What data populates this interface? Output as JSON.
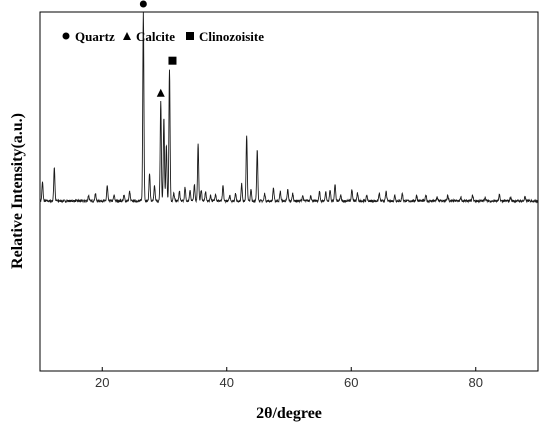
{
  "chart_data": {
    "type": "line",
    "title": "",
    "xlabel": "2θ/degree",
    "ylabel": "Relative Intensity(a.u.)",
    "xlim": [
      10,
      90
    ],
    "ylim": [
      -0.9,
      1.0
    ],
    "x_ticks": [
      20,
      40,
      60,
      80
    ],
    "grid": false,
    "y_tick_labels_shown": false,
    "legend": {
      "placement": "top-left",
      "entries": [
        {
          "marker": "circle",
          "label": "Quartz"
        },
        {
          "marker": "triangle",
          "label": "Calcite"
        },
        {
          "marker": "square",
          "label": "Clinozoisite"
        }
      ]
    },
    "baseline": 0,
    "series": [
      {
        "color": "#1a1a1a",
        "peaks": [
          [
            10.4,
            0.1
          ],
          [
            12.3,
            0.18
          ],
          [
            17.8,
            0.03
          ],
          [
            18.9,
            0.04
          ],
          [
            20.8,
            0.08
          ],
          [
            21.9,
            0.03
          ],
          [
            23.5,
            0.03
          ],
          [
            24.4,
            0.05
          ],
          [
            26.6,
            1.0
          ],
          [
            27.6,
            0.15
          ],
          [
            28.4,
            0.08
          ],
          [
            29.4,
            0.53
          ],
          [
            29.9,
            0.44
          ],
          [
            30.3,
            0.3
          ],
          [
            30.8,
            0.7
          ],
          [
            31.5,
            0.04
          ],
          [
            32.4,
            0.05
          ],
          [
            33.3,
            0.07
          ],
          [
            34.1,
            0.06
          ],
          [
            34.8,
            0.09
          ],
          [
            35.4,
            0.3
          ],
          [
            35.9,
            0.06
          ],
          [
            36.6,
            0.05
          ],
          [
            37.4,
            0.03
          ],
          [
            38.2,
            0.04
          ],
          [
            39.4,
            0.08
          ],
          [
            40.5,
            0.03
          ],
          [
            41.4,
            0.04
          ],
          [
            42.4,
            0.09
          ],
          [
            43.2,
            0.35
          ],
          [
            43.9,
            0.06
          ],
          [
            44.9,
            0.27
          ],
          [
            46.1,
            0.04
          ],
          [
            47.5,
            0.07
          ],
          [
            48.6,
            0.05
          ],
          [
            49.8,
            0.06
          ],
          [
            50.6,
            0.04
          ],
          [
            52.2,
            0.03
          ],
          [
            53.5,
            0.03
          ],
          [
            54.9,
            0.05
          ],
          [
            55.9,
            0.05
          ],
          [
            56.6,
            0.06
          ],
          [
            57.4,
            0.09
          ],
          [
            58.3,
            0.03
          ],
          [
            60.1,
            0.06
          ],
          [
            61.0,
            0.04
          ],
          [
            62.5,
            0.03
          ],
          [
            64.5,
            0.04
          ],
          [
            65.6,
            0.05
          ],
          [
            67.0,
            0.03
          ],
          [
            68.2,
            0.04
          ],
          [
            70.5,
            0.03
          ],
          [
            72.0,
            0.03
          ],
          [
            73.8,
            0.02
          ],
          [
            75.5,
            0.03
          ],
          [
            77.6,
            0.02
          ],
          [
            79.5,
            0.03
          ],
          [
            81.5,
            0.02
          ],
          [
            83.8,
            0.03
          ],
          [
            85.6,
            0.02
          ],
          [
            87.9,
            0.02
          ]
        ]
      }
    ],
    "annotations": [
      {
        "marker": "circle",
        "x": 26.6,
        "y": 1.0
      },
      {
        "marker": "triangle",
        "x": 29.4,
        "y": 0.53
      },
      {
        "marker": "square",
        "x": 30.8,
        "y": 0.7
      }
    ]
  }
}
